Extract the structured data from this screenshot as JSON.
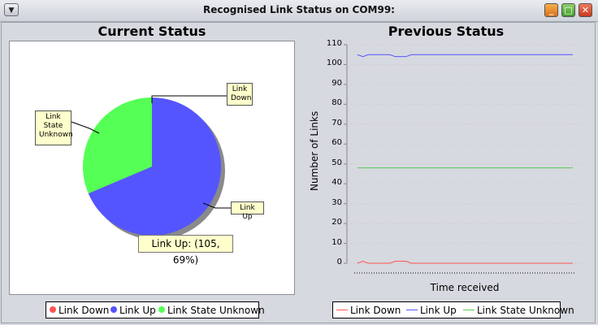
{
  "window": {
    "title": "Recognised Link Status on COM99:",
    "menu_icon": "down-triangle-icon",
    "buttons": {
      "minimize_icon": "minimize-icon",
      "maximize_icon": "maximize-icon",
      "close_icon": "close-icon"
    }
  },
  "chart_data": [
    {
      "type": "pie",
      "title": "Current Status",
      "slices": [
        {
          "label": "Link Down",
          "value": 0,
          "color": "#ff5555"
        },
        {
          "label": "Link Up",
          "value": 105,
          "color": "#5555ff"
        },
        {
          "label": "Link State Unknown",
          "value": 48,
          "color": "#55ff55"
        }
      ],
      "callouts": [
        "Link Down",
        "Link Up",
        "Link State Unknown"
      ],
      "tooltip": "Link Up: (105, 69%)",
      "legend": [
        "Link Down",
        "Link Up",
        "Link State Unknown"
      ],
      "legend_placement": "bottom"
    },
    {
      "type": "line",
      "title": "Previous Status",
      "xlabel": "Time received",
      "ylabel": "Number of Links",
      "ylim": [
        0,
        110
      ],
      "yticks": [
        "0",
        "10",
        "20",
        "30",
        "40",
        "50",
        "60",
        "70",
        "80",
        "90",
        "100",
        "110"
      ],
      "grid": true,
      "legend_placement": "bottom",
      "series": [
        {
          "name": "Link Down",
          "color": "#ff5555",
          "x": [
            0,
            1,
            2,
            3,
            4,
            5,
            6,
            7,
            8,
            9,
            10,
            11,
            12,
            13,
            14,
            15,
            16,
            17,
            18,
            19,
            20,
            21,
            22,
            23,
            24,
            25,
            26,
            27,
            28,
            29,
            30,
            31,
            32,
            33,
            34,
            35,
            36,
            37,
            38,
            39,
            40
          ],
          "values": [
            0,
            1,
            0,
            0,
            0,
            0,
            0,
            1,
            1,
            1,
            0,
            0,
            0,
            0,
            0,
            0,
            0,
            0,
            0,
            0,
            0,
            0,
            0,
            0,
            0,
            0,
            0,
            0,
            0,
            0,
            0,
            0,
            0,
            0,
            0,
            0,
            0,
            0,
            0,
            0,
            0
          ]
        },
        {
          "name": "Link Up",
          "color": "#5555ff",
          "x": [
            0,
            1,
            2,
            3,
            4,
            5,
            6,
            7,
            8,
            9,
            10,
            11,
            12,
            13,
            14,
            15,
            16,
            17,
            18,
            19,
            20,
            21,
            22,
            23,
            24,
            25,
            26,
            27,
            28,
            29,
            30,
            31,
            32,
            33,
            34,
            35,
            36,
            37,
            38,
            39,
            40
          ],
          "values": [
            105,
            104,
            105,
            105,
            105,
            105,
            105,
            104,
            104,
            104,
            105,
            105,
            105,
            105,
            105,
            105,
            105,
            105,
            105,
            105,
            105,
            105,
            105,
            105,
            105,
            105,
            105,
            105,
            105,
            105,
            105,
            105,
            105,
            105,
            105,
            105,
            105,
            105,
            105,
            105,
            105
          ]
        },
        {
          "name": "Link State Unknown",
          "color": "#55cc55",
          "x": [
            0,
            1,
            2,
            3,
            4,
            5,
            6,
            7,
            8,
            9,
            10,
            11,
            12,
            13,
            14,
            15,
            16,
            17,
            18,
            19,
            20,
            21,
            22,
            23,
            24,
            25,
            26,
            27,
            28,
            29,
            30,
            31,
            32,
            33,
            34,
            35,
            36,
            37,
            38,
            39,
            40
          ],
          "values": [
            48,
            48,
            48,
            48,
            48,
            48,
            48,
            48,
            48,
            48,
            48,
            48,
            48,
            48,
            48,
            48,
            48,
            48,
            48,
            48,
            48,
            48,
            48,
            48,
            48,
            48,
            48,
            48,
            48,
            48,
            48,
            48,
            48,
            48,
            48,
            48,
            48,
            48,
            48,
            48,
            48
          ]
        }
      ]
    }
  ]
}
